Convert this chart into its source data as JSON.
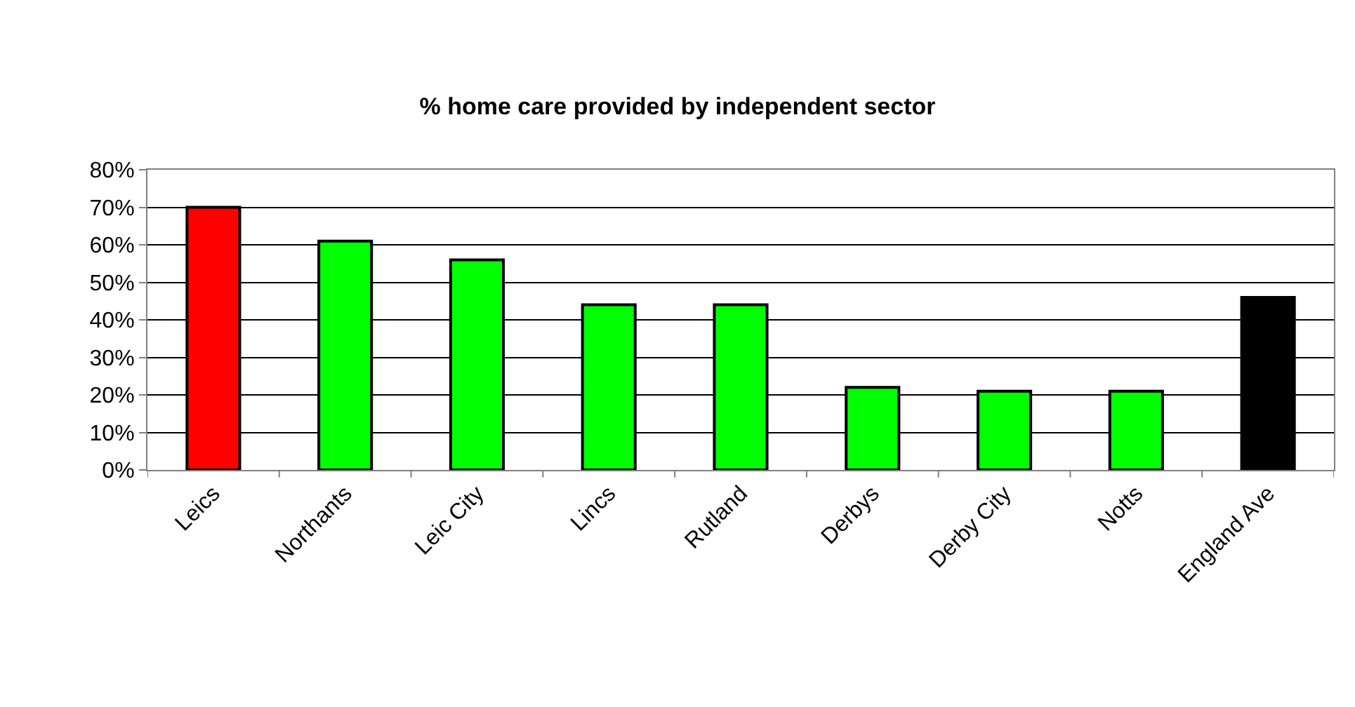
{
  "chart_data": {
    "type": "bar",
    "title": "% home care provided by independent sector",
    "categories": [
      "Leics",
      "Northants",
      "Leic City",
      "Lincs",
      "Rutland",
      "Derbys",
      "Derby City",
      "Notts",
      "England Ave"
    ],
    "values": [
      70,
      61,
      56,
      44,
      44,
      22,
      21,
      21,
      46
    ],
    "colors": [
      "#ff0000",
      "#00ff00",
      "#00ff00",
      "#00ff00",
      "#00ff00",
      "#00ff00",
      "#00ff00",
      "#00ff00",
      "#000000"
    ],
    "ylim": [
      0,
      80
    ],
    "yticks": [
      {
        "value": 0,
        "label": "0%"
      },
      {
        "value": 10,
        "label": "10%"
      },
      {
        "value": 20,
        "label": "20%"
      },
      {
        "value": 30,
        "label": "30%"
      },
      {
        "value": 40,
        "label": "40%"
      },
      {
        "value": 50,
        "label": "50%"
      },
      {
        "value": 60,
        "label": "60%"
      },
      {
        "value": 70,
        "label": "70%"
      },
      {
        "value": 80,
        "label": "80%"
      }
    ],
    "grid": "y"
  }
}
